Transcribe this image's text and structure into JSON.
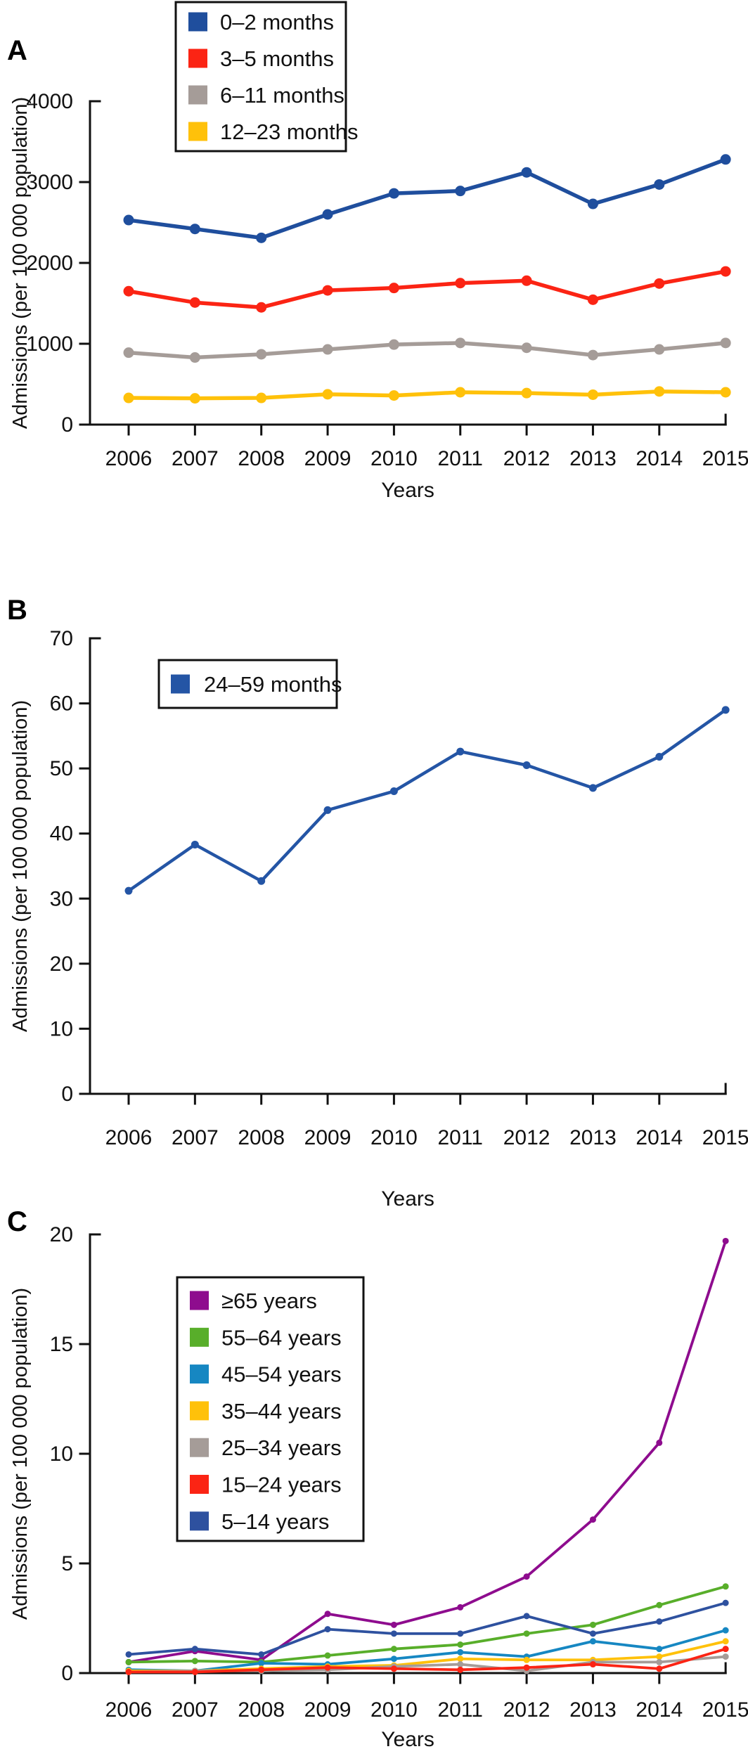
{
  "chart_data": [
    {
      "type": "line",
      "panel_label": "A",
      "xlabel": "Years",
      "ylabel": "Admissions (per 100 000 population)",
      "x": [
        2006,
        2007,
        2008,
        2009,
        2010,
        2011,
        2012,
        2013,
        2014,
        2015
      ],
      "ylim": [
        0,
        4000
      ],
      "yticks": [
        0,
        1000,
        2000,
        3000,
        4000
      ],
      "grid": false,
      "legend_position": "upper-left-inside",
      "series": [
        {
          "name": "0–2 months",
          "color": "#1F4E9D",
          "values": [
            2530,
            2420,
            2310,
            2600,
            2860,
            2890,
            3120,
            2730,
            2970,
            3280
          ]
        },
        {
          "name": "3–5 months",
          "color": "#FB2414",
          "values": [
            1650,
            1510,
            1450,
            1660,
            1690,
            1750,
            1780,
            1545,
            1745,
            1895
          ]
        },
        {
          "name": "6–11 months",
          "color": "#A59C98",
          "values": [
            890,
            830,
            870,
            930,
            990,
            1010,
            950,
            860,
            930,
            1010
          ]
        },
        {
          "name": "12–23 months",
          "color": "#FFC10A",
          "values": [
            330,
            325,
            330,
            375,
            360,
            400,
            390,
            370,
            410,
            400
          ]
        }
      ]
    },
    {
      "type": "line",
      "panel_label": "B",
      "xlabel": "Years",
      "ylabel": "Admissions (per 100 000 population)",
      "x": [
        2006,
        2007,
        2008,
        2009,
        2010,
        2011,
        2012,
        2013,
        2014,
        2015
      ],
      "ylim": [
        0,
        70
      ],
      "yticks": [
        0,
        10,
        20,
        30,
        40,
        50,
        60,
        70
      ],
      "grid": false,
      "legend_position": "upper-left-inside",
      "series": [
        {
          "name": "24–59 months",
          "color": "#2455A5",
          "values": [
            31.2,
            38.3,
            32.7,
            43.6,
            46.5,
            52.6,
            50.5,
            47.0,
            51.8,
            59.0
          ]
        }
      ]
    },
    {
      "type": "line",
      "panel_label": "C",
      "xlabel": "Years",
      "ylabel": "Admissions (per 100 000 population)",
      "x": [
        2006,
        2007,
        2008,
        2009,
        2010,
        2011,
        2012,
        2013,
        2014,
        2015
      ],
      "ylim": [
        0,
        20
      ],
      "yticks": [
        0,
        5,
        10,
        15,
        20
      ],
      "grid": false,
      "legend_position": "upper-left-inside",
      "series": [
        {
          "name": "≥65 years",
          "color": "#8E0C8E",
          "values": [
            0.5,
            1.0,
            0.6,
            2.7,
            2.2,
            3.0,
            4.4,
            7.0,
            10.5,
            19.7
          ]
        },
        {
          "name": "55–64 years",
          "color": "#58AE2A",
          "values": [
            0.5,
            0.55,
            0.5,
            0.8,
            1.1,
            1.3,
            1.8,
            2.2,
            3.1,
            3.95
          ]
        },
        {
          "name": "45–54 years",
          "color": "#1687C2",
          "values": [
            0.15,
            0.1,
            0.45,
            0.4,
            0.65,
            0.95,
            0.75,
            1.45,
            1.1,
            1.95
          ]
        },
        {
          "name": "35–44 years",
          "color": "#FFC10A",
          "values": [
            0.1,
            0.1,
            0.2,
            0.3,
            0.35,
            0.65,
            0.6,
            0.6,
            0.75,
            1.45
          ]
        },
        {
          "name": "25–34 years",
          "color": "#A59C98",
          "values": [
            0.05,
            0.1,
            0.1,
            0.15,
            0.3,
            0.4,
            0.1,
            0.5,
            0.5,
            0.75
          ]
        },
        {
          "name": "15–24 years",
          "color": "#FB2414",
          "values": [
            0.05,
            0.05,
            0.15,
            0.25,
            0.2,
            0.15,
            0.25,
            0.4,
            0.2,
            1.1
          ]
        },
        {
          "name": "5–14 years",
          "color": "#2E519F",
          "values": [
            0.85,
            1.1,
            0.85,
            2.0,
            1.8,
            1.8,
            2.6,
            1.8,
            2.35,
            3.2
          ]
        }
      ]
    }
  ]
}
